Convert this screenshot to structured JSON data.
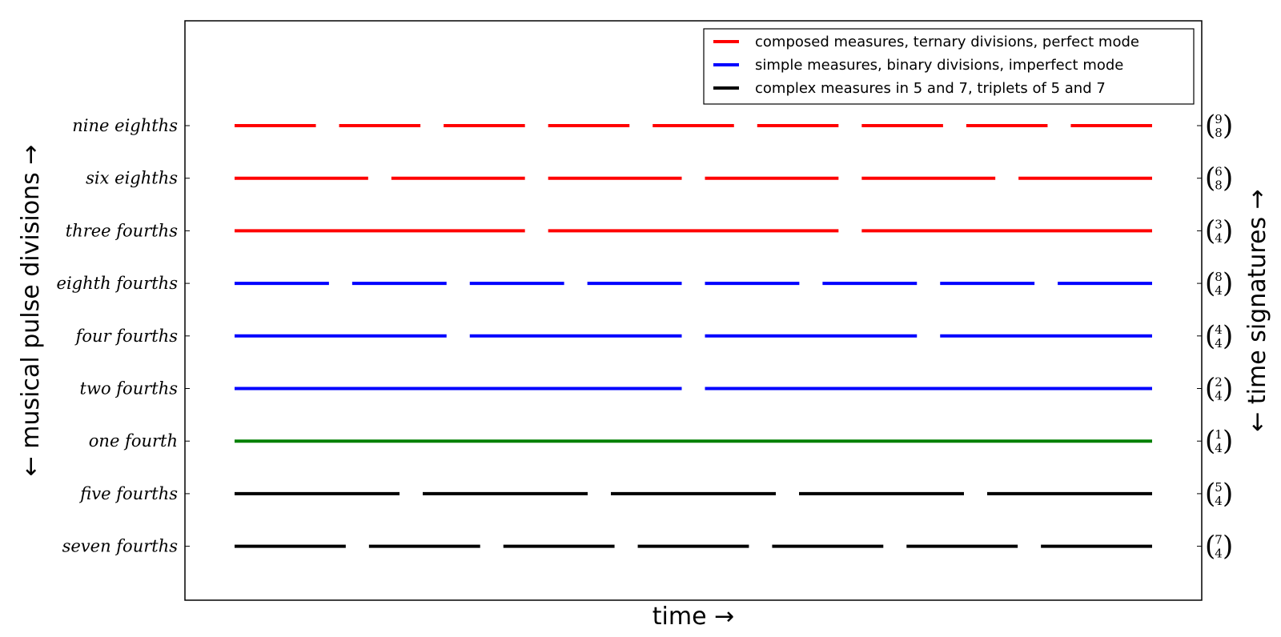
{
  "chart_data": {
    "type": "line",
    "xlabel": "time →",
    "ylabel": "← musical pulse divisions →",
    "ylabel_right": "← time signatures →",
    "legend_position": "top-right",
    "x_range": [
      0,
      1
    ],
    "grid": false,
    "legend": [
      {
        "label": "composed measures, ternary divisions, perfect mode",
        "color": "#ff0000"
      },
      {
        "label": "simple measures, binary divisions, imperfect mode",
        "color": "#0000ff"
      },
      {
        "label": "complex measures in 5 and 7, triplets of 5 and 7",
        "color": "#000000"
      }
    ],
    "series": [
      {
        "label": "nine eighths",
        "signature_num": "9",
        "signature_den": "8",
        "segments": 9,
        "color": "#ff0000"
      },
      {
        "label": "six eighths",
        "signature_num": "6",
        "signature_den": "8",
        "segments": 6,
        "color": "#ff0000"
      },
      {
        "label": "three fourths",
        "signature_num": "3",
        "signature_den": "4",
        "segments": 3,
        "color": "#ff0000"
      },
      {
        "label": "eighth fourths",
        "signature_num": "8",
        "signature_den": "4",
        "segments": 8,
        "color": "#0000ff"
      },
      {
        "label": "four fourths",
        "signature_num": "4",
        "signature_den": "4",
        "segments": 4,
        "color": "#0000ff"
      },
      {
        "label": "two fourths",
        "signature_num": "2",
        "signature_den": "4",
        "segments": 2,
        "color": "#0000ff"
      },
      {
        "label": "one fourth",
        "signature_num": "1",
        "signature_den": "4",
        "segments": 1,
        "color": "#008000"
      },
      {
        "label": "five fourths",
        "signature_num": "5",
        "signature_den": "4",
        "segments": 5,
        "color": "#000000"
      },
      {
        "label": "seven fourths",
        "signature_num": "7",
        "signature_den": "4",
        "segments": 7,
        "color": "#000000"
      }
    ]
  }
}
